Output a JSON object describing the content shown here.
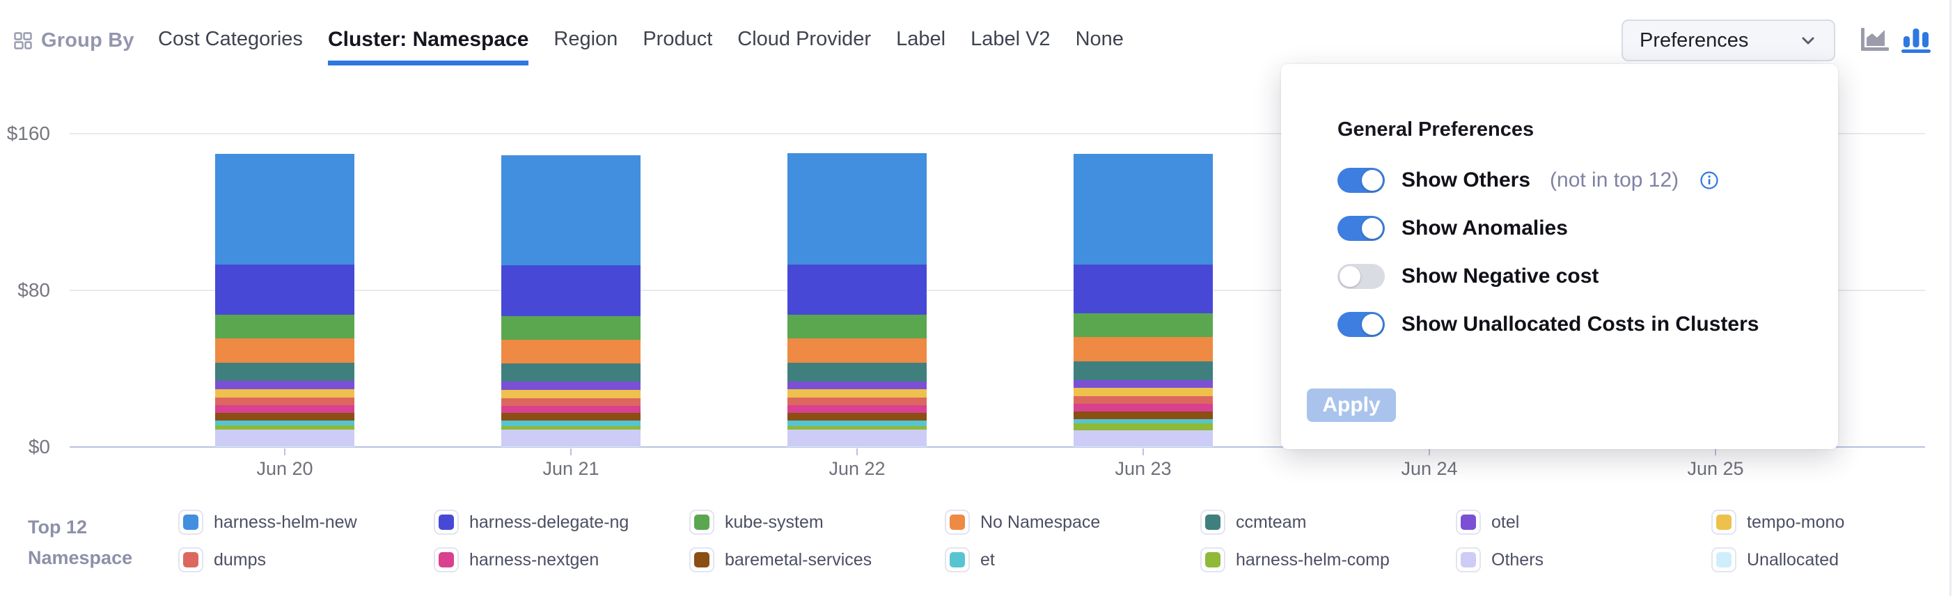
{
  "header": {
    "group_by": {
      "label": "Group By"
    },
    "tabs": [
      {
        "label": "Cost Categories",
        "active": false
      },
      {
        "label": "Cluster: Namespace",
        "active": true
      },
      {
        "label": "Region",
        "active": false
      },
      {
        "label": "Product",
        "active": false
      },
      {
        "label": "Cloud Provider",
        "active": false
      },
      {
        "label": "Label",
        "active": false
      },
      {
        "label": "Label V2",
        "active": false
      },
      {
        "label": "None",
        "active": false
      }
    ],
    "preferences_button": {
      "label": "Preferences"
    },
    "chart_type_switcher": {
      "area_icon_color": "#9b9cab",
      "bar_icon_color": "#2e78e2",
      "selected": "bar"
    }
  },
  "preferences_panel": {
    "title": "General Preferences",
    "toggles": [
      {
        "label": "Show Others",
        "suffix": "(not in top 12)",
        "has_info_icon": true,
        "on": true
      },
      {
        "label": "Show Anomalies",
        "suffix": "",
        "has_info_icon": false,
        "on": true
      },
      {
        "label": "Show Negative cost",
        "suffix": "",
        "has_info_icon": false,
        "on": false
      },
      {
        "label": "Show Unallocated Costs in Clusters",
        "suffix": "",
        "has_info_icon": false,
        "on": true
      }
    ],
    "apply_button": "Apply",
    "accent_color": "#3d7ee0"
  },
  "legend": {
    "title_line1": "Top 12",
    "title_line2": "Namespace"
  },
  "chart_data": {
    "type": "bar",
    "stacked": true,
    "unit": "$",
    "ylim": [
      0,
      160
    ],
    "grid": true,
    "legend_position": "bottom",
    "axis_color": "#b9c2e0",
    "gridline_color": "#e9eaef",
    "yticks": [
      {
        "label": "$0",
        "value": 0
      },
      {
        "label": "$80",
        "value": 80
      },
      {
        "label": "$160",
        "value": 160
      }
    ],
    "categories": [
      "Jun 20",
      "Jun 21",
      "Jun 22",
      "Jun 23",
      "Jun 24",
      "Jun 25"
    ],
    "note": "Jun 24 and Jun 25 columns are hidden behind the preferences popup; values unreadable (null). Stack renders first series on top, last series at bottom.",
    "series": [
      {
        "name": "harness-helm-new",
        "color": "#418fde",
        "values": [
          56.5,
          56.2,
          56.9,
          56.4,
          null,
          null
        ]
      },
      {
        "name": "harness-delegate-ng",
        "color": "#4749d6",
        "values": [
          25.6,
          25.8,
          25.7,
          25.2,
          null,
          null
        ]
      },
      {
        "name": "kube-system",
        "color": "#5aa750",
        "values": [
          12.1,
          12.2,
          12.2,
          12.0,
          null,
          null
        ]
      },
      {
        "name": "No Namespace",
        "color": "#ee8a43",
        "values": [
          12.4,
          12.3,
          12.5,
          12.4,
          null,
          null
        ]
      },
      {
        "name": "ccmteam",
        "color": "#3f7f7e",
        "values": [
          9.3,
          9.2,
          9.3,
          9.4,
          null,
          null
        ]
      },
      {
        "name": "otel",
        "color": "#7b50d5",
        "values": [
          4.3,
          4.2,
          4.2,
          4.2,
          null,
          null
        ]
      },
      {
        "name": "tempo-mono",
        "color": "#eec14d",
        "values": [
          4.2,
          4.1,
          4.2,
          4.2,
          null,
          null
        ]
      },
      {
        "name": "dumps",
        "color": "#dc675f",
        "values": [
          3.9,
          4.0,
          3.9,
          4.0,
          null,
          null
        ]
      },
      {
        "name": "harness-nextgen",
        "color": "#d94090",
        "values": [
          3.8,
          3.7,
          3.8,
          3.7,
          null,
          null
        ]
      },
      {
        "name": "baremetal-services",
        "color": "#8b4e13",
        "values": [
          3.9,
          3.9,
          3.9,
          3.9,
          null,
          null
        ]
      },
      {
        "name": "et",
        "color": "#56c5d1",
        "values": [
          2.7,
          2.6,
          2.8,
          2.2,
          null,
          null
        ]
      },
      {
        "name": "harness-helm-comp",
        "color": "#8fb936",
        "values": [
          2.1,
          2.0,
          1.9,
          3.4,
          null,
          null
        ]
      },
      {
        "name": "Others",
        "color": "#cdccf6",
        "values": [
          8.5,
          8.5,
          8.6,
          8.4,
          null,
          null
        ]
      },
      {
        "name": "Unallocated",
        "color": "#cfeefb",
        "values": [
          0.3,
          0.3,
          0.3,
          0.3,
          null,
          null
        ]
      }
    ]
  }
}
